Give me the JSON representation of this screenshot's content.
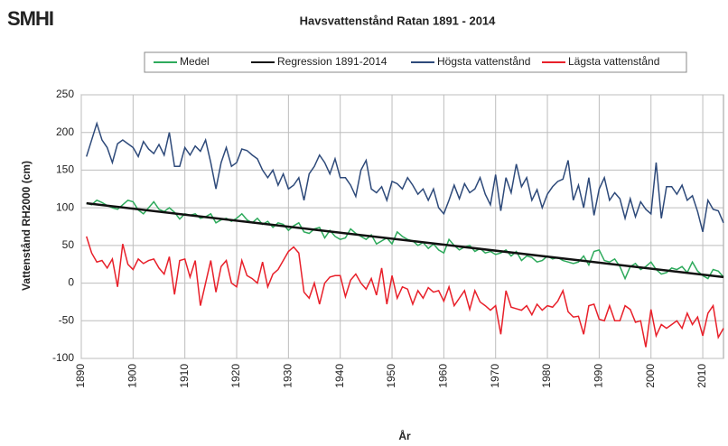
{
  "logo": "SMHI",
  "chart_data": {
    "type": "line",
    "title": "Havsvattenstånd Ratan 1891 - 2014",
    "xlabel": "År",
    "ylabel": "Vattenstånd RH2000 (cm)",
    "x": [
      1891,
      1892,
      1893,
      1894,
      1895,
      1896,
      1897,
      1898,
      1899,
      1900,
      1901,
      1902,
      1903,
      1904,
      1905,
      1906,
      1907,
      1908,
      1909,
      1910,
      1911,
      1912,
      1913,
      1914,
      1915,
      1916,
      1917,
      1918,
      1919,
      1920,
      1921,
      1922,
      1923,
      1924,
      1925,
      1926,
      1927,
      1928,
      1929,
      1930,
      1931,
      1932,
      1933,
      1934,
      1935,
      1936,
      1937,
      1938,
      1939,
      1940,
      1941,
      1942,
      1943,
      1944,
      1945,
      1946,
      1947,
      1948,
      1949,
      1950,
      1951,
      1952,
      1953,
      1954,
      1955,
      1956,
      1957,
      1958,
      1959,
      1960,
      1961,
      1962,
      1963,
      1964,
      1965,
      1966,
      1967,
      1968,
      1969,
      1970,
      1971,
      1972,
      1973,
      1974,
      1975,
      1976,
      1977,
      1978,
      1979,
      1980,
      1981,
      1982,
      1983,
      1984,
      1985,
      1986,
      1987,
      1988,
      1989,
      1990,
      1991,
      1992,
      1993,
      1994,
      1995,
      1996,
      1997,
      1998,
      1999,
      2000,
      2001,
      2002,
      2003,
      2004,
      2005,
      2006,
      2007,
      2008,
      2009,
      2010,
      2011,
      2012,
      2013,
      2014
    ],
    "series": [
      {
        "name": "Medel",
        "color": "#2eaa5c",
        "values": [
          106,
          104,
          110,
          107,
          103,
          100,
          98,
          104,
          110,
          108,
          97,
          92,
          100,
          108,
          98,
          95,
          100,
          94,
          85,
          92,
          90,
          92,
          86,
          88,
          92,
          80,
          84,
          86,
          82,
          86,
          92,
          84,
          80,
          86,
          78,
          82,
          74,
          80,
          78,
          70,
          76,
          80,
          68,
          66,
          72,
          74,
          60,
          70,
          62,
          58,
          60,
          72,
          66,
          62,
          58,
          64,
          52,
          56,
          60,
          52,
          68,
          62,
          58,
          56,
          50,
          54,
          46,
          52,
          44,
          40,
          58,
          50,
          44,
          48,
          50,
          42,
          46,
          40,
          42,
          38,
          40,
          44,
          36,
          42,
          30,
          36,
          34,
          28,
          30,
          36,
          32,
          34,
          30,
          28,
          26,
          28,
          36,
          24,
          42,
          44,
          30,
          28,
          32,
          22,
          6,
          22,
          26,
          18,
          22,
          28,
          18,
          12,
          14,
          20,
          18,
          22,
          14,
          28,
          16,
          10,
          6,
          18,
          16,
          8
        ]
      },
      {
        "name": "Regression 1891-2014",
        "color": "#111111",
        "x": [
          1891,
          2014
        ],
        "values": [
          106,
          8
        ]
      },
      {
        "name": "Högsta vattenstånd",
        "color": "#2e4a7a",
        "values": [
          168,
          190,
          212,
          190,
          180,
          160,
          185,
          190,
          185,
          180,
          168,
          188,
          178,
          172,
          184,
          170,
          200,
          155,
          155,
          180,
          170,
          182,
          175,
          190,
          160,
          125,
          160,
          180,
          155,
          160,
          178,
          176,
          170,
          165,
          150,
          140,
          150,
          130,
          145,
          125,
          130,
          140,
          110,
          145,
          155,
          170,
          160,
          145,
          165,
          140,
          140,
          130,
          115,
          150,
          163,
          125,
          120,
          128,
          110,
          135,
          132,
          125,
          140,
          130,
          118,
          125,
          110,
          125,
          100,
          92,
          110,
          130,
          112,
          132,
          120,
          125,
          140,
          118,
          104,
          144,
          96,
          140,
          120,
          158,
          128,
          140,
          110,
          124,
          100,
          118,
          128,
          135,
          138,
          163,
          110,
          130,
          100,
          140,
          90,
          125,
          140,
          110,
          120,
          112,
          86,
          112,
          88,
          108,
          98,
          92,
          160,
          86,
          128,
          128,
          118,
          130,
          110,
          116,
          95,
          68,
          110,
          98,
          96,
          80
        ]
      },
      {
        "name": "Lägsta vattenstånd",
        "color": "#e8202a",
        "values": [
          62,
          40,
          28,
          30,
          20,
          32,
          -5,
          52,
          25,
          18,
          32,
          26,
          30,
          32,
          20,
          12,
          35,
          -15,
          30,
          32,
          8,
          30,
          -30,
          0,
          30,
          -12,
          22,
          30,
          0,
          -5,
          30,
          10,
          6,
          0,
          28,
          -5,
          12,
          18,
          30,
          42,
          48,
          40,
          -12,
          -20,
          0,
          -28,
          0,
          8,
          10,
          10,
          -18,
          4,
          12,
          0,
          -8,
          6,
          -16,
          20,
          -28,
          10,
          -20,
          -5,
          -8,
          -28,
          -10,
          -20,
          -6,
          -12,
          -10,
          -24,
          -5,
          -30,
          -20,
          -10,
          -35,
          -10,
          -25,
          -30,
          -36,
          -30,
          -68,
          -10,
          -32,
          -34,
          -36,
          -30,
          -42,
          -28,
          -36,
          -30,
          -32,
          -24,
          -10,
          -38,
          -45,
          -44,
          -68,
          -30,
          -28,
          -48,
          -50,
          -30,
          -50,
          -50,
          -30,
          -35,
          -52,
          -50,
          -85,
          -35,
          -70,
          -55,
          -60,
          -55,
          -50,
          -60,
          -40,
          -55,
          -45,
          -70,
          -40,
          -30,
          -72,
          -60
        ]
      }
    ],
    "xlim": [
      1890,
      2014
    ],
    "xticks": [
      1890,
      1900,
      1910,
      1920,
      1930,
      1940,
      1950,
      1960,
      1970,
      1980,
      1990,
      2000,
      2010
    ],
    "ylim": [
      -100,
      250
    ],
    "yticks": [
      -100,
      -50,
      0,
      50,
      100,
      150,
      200,
      250
    ],
    "grid": true,
    "legend": "top"
  }
}
